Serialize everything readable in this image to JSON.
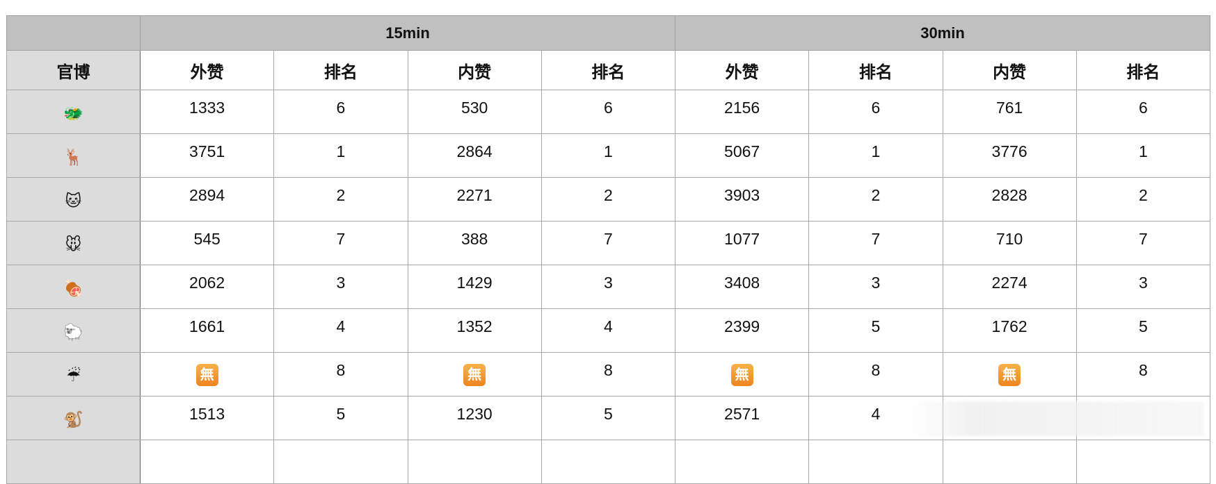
{
  "header": {
    "group_15": "15min",
    "group_30": "30min",
    "account": "官博",
    "out_likes": "外赞",
    "rank": "排名",
    "in_likes": "内赞"
  },
  "none_icon": "無",
  "rows": [
    {
      "icon": "🐲",
      "v": [
        "1333",
        "6",
        "530",
        "6",
        "2156",
        "6",
        "761",
        "6"
      ]
    },
    {
      "icon": "🦌",
      "v": [
        "3751",
        "1",
        "2864",
        "1",
        "5067",
        "1",
        "3776",
        "1"
      ]
    },
    {
      "icon": "🐱",
      "v": [
        "2894",
        "2",
        "2271",
        "2",
        "3903",
        "2",
        "2828",
        "2"
      ]
    },
    {
      "icon": "🐭",
      "v": [
        "545",
        "7",
        "388",
        "7",
        "1077",
        "7",
        "710",
        "7"
      ]
    },
    {
      "icon": "🍖",
      "v": [
        "2062",
        "3",
        "1429",
        "3",
        "3408",
        "3",
        "2274",
        "3"
      ]
    },
    {
      "icon": "🐑",
      "v": [
        "1661",
        "4",
        "1352",
        "4",
        "2399",
        "5",
        "1762",
        "5"
      ]
    },
    {
      "icon": "☔",
      "v": [
        "無",
        "8",
        "無",
        "8",
        "無",
        "8",
        "無",
        "8"
      ]
    },
    {
      "icon": "🐒",
      "v": [
        "1513",
        "5",
        "1230",
        "5",
        "2571",
        "4",
        "",
        ""
      ]
    }
  ]
}
